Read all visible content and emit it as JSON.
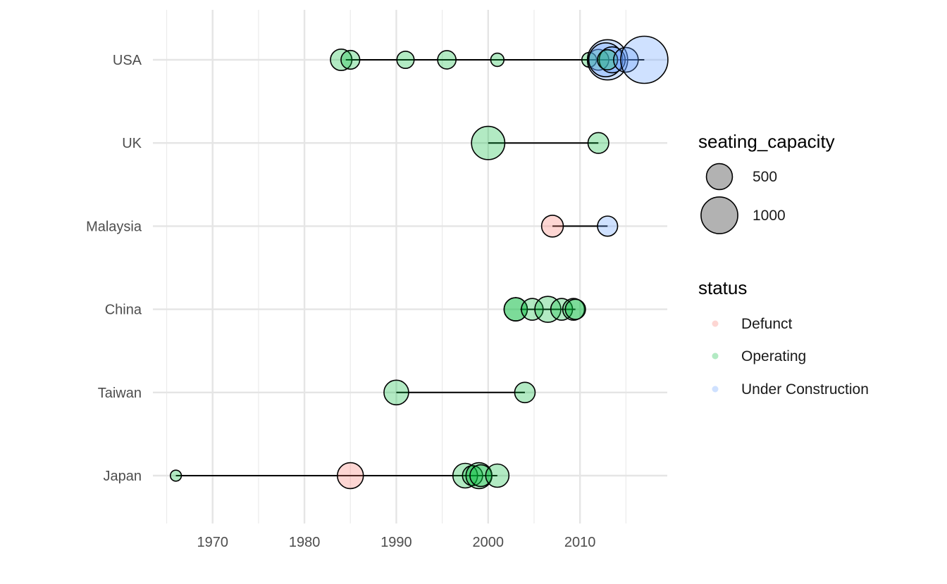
{
  "chart_data": {
    "type": "scatter",
    "subtype": "dumbbell-bubble",
    "title": "",
    "xlabel": "",
    "ylabel": "",
    "xlim": [
      1963.5,
      2019.5
    ],
    "x_ticks": [
      1970,
      1980,
      1990,
      2000,
      2010
    ],
    "x_minor_ticks": [
      1965,
      1975,
      1985,
      1995,
      2005,
      2015
    ],
    "categories": [
      "Japan",
      "Taiwan",
      "China",
      "Malaysia",
      "UK",
      "USA"
    ],
    "grid": true,
    "theme": "minimal",
    "ranges": [
      {
        "category": "USA",
        "start": 1984.5,
        "end": 2017
      },
      {
        "category": "UK",
        "start": 2000,
        "end": 2012
      },
      {
        "category": "Malaysia",
        "start": 2007,
        "end": 2013
      },
      {
        "category": "China",
        "start": 2003.5,
        "end": 2009.5
      },
      {
        "category": "Taiwan",
        "start": 1990,
        "end": 2004
      },
      {
        "category": "Japan",
        "start": 1966,
        "end": 2001
      }
    ],
    "points": [
      {
        "category": "USA",
        "year": 1984,
        "seating_capacity": 340,
        "status": "Operating"
      },
      {
        "category": "USA",
        "year": 1985,
        "seating_capacity": 260,
        "status": "Operating"
      },
      {
        "category": "USA",
        "year": 1991,
        "seating_capacity": 220,
        "status": "Operating"
      },
      {
        "category": "USA",
        "year": 1995.5,
        "seating_capacity": 250,
        "status": "Operating"
      },
      {
        "category": "USA",
        "year": 2001,
        "seating_capacity": 130,
        "status": "Operating"
      },
      {
        "category": "USA",
        "year": 2011,
        "seating_capacity": 160,
        "status": "Operating"
      },
      {
        "category": "USA",
        "year": 2012,
        "seating_capacity": 320,
        "status": "Operating"
      },
      {
        "category": "USA",
        "year": 2013,
        "seating_capacity": 1200,
        "status": "Under Construction"
      },
      {
        "category": "USA",
        "year": 2012.8,
        "seating_capacity": 850,
        "status": "Under Construction"
      },
      {
        "category": "USA",
        "year": 2013.5,
        "seating_capacity": 500,
        "status": "Under Construction"
      },
      {
        "category": "USA",
        "year": 2013,
        "seating_capacity": 300,
        "status": "Operating"
      },
      {
        "category": "USA",
        "year": 2015,
        "seating_capacity": 450,
        "status": "Under Construction"
      },
      {
        "category": "USA",
        "year": 2017,
        "seating_capacity": 1650,
        "status": "Under Construction"
      },
      {
        "category": "UK",
        "year": 2000,
        "seating_capacity": 820,
        "status": "Operating"
      },
      {
        "category": "UK",
        "year": 2012,
        "seating_capacity": 320,
        "status": "Operating"
      },
      {
        "category": "Malaysia",
        "year": 2007,
        "seating_capacity": 350,
        "status": "Defunct"
      },
      {
        "category": "Malaysia",
        "year": 2013,
        "seating_capacity": 300,
        "status": "Under Construction"
      },
      {
        "category": "China",
        "year": 2003,
        "seating_capacity": 400,
        "status": "Operating"
      },
      {
        "category": "China",
        "year": 2003,
        "seating_capacity": 400,
        "status": "Operating"
      },
      {
        "category": "China",
        "year": 2004.8,
        "seating_capacity": 350,
        "status": "Operating"
      },
      {
        "category": "China",
        "year": 2006.5,
        "seating_capacity": 500,
        "status": "Operating"
      },
      {
        "category": "China",
        "year": 2008,
        "seating_capacity": 350,
        "status": "Operating"
      },
      {
        "category": "China",
        "year": 2009.3,
        "seating_capacity": 350,
        "status": "Operating"
      },
      {
        "category": "China",
        "year": 2009.5,
        "seating_capacity": 300,
        "status": "Operating"
      },
      {
        "category": "Taiwan",
        "year": 1990,
        "seating_capacity": 450,
        "status": "Operating"
      },
      {
        "category": "Taiwan",
        "year": 2004,
        "seating_capacity": 310,
        "status": "Operating"
      },
      {
        "category": "Japan",
        "year": 1966,
        "seating_capacity": 90,
        "status": "Operating"
      },
      {
        "category": "Japan",
        "year": 1985,
        "seating_capacity": 500,
        "status": "Defunct"
      },
      {
        "category": "Japan",
        "year": 1997.5,
        "seating_capacity": 450,
        "status": "Operating"
      },
      {
        "category": "Japan",
        "year": 1998.3,
        "seating_capacity": 300,
        "status": "Operating"
      },
      {
        "category": "Japan",
        "year": 1999,
        "seating_capacity": 500,
        "status": "Operating"
      },
      {
        "category": "Japan",
        "year": 1999.2,
        "seating_capacity": 350,
        "status": "Operating"
      },
      {
        "category": "Japan",
        "year": 2001,
        "seating_capacity": 400,
        "status": "Operating"
      }
    ],
    "status_colors": {
      "Defunct": "#F8766D",
      "Operating": "#00BA38",
      "Under Construction": "#619CFF"
    },
    "point_alpha": 0.3,
    "legend": {
      "placement": "right",
      "size": {
        "title": "seating_capacity",
        "entries": [
          {
            "label": "500",
            "value": 500
          },
          {
            "label": "1000",
            "value": 1000
          }
        ]
      },
      "color": {
        "title": "status",
        "entries": [
          {
            "label": "Defunct",
            "status": "Defunct"
          },
          {
            "label": "Operating",
            "status": "Operating"
          },
          {
            "label": "Under Construction",
            "status": "Under Construction"
          }
        ]
      }
    }
  }
}
